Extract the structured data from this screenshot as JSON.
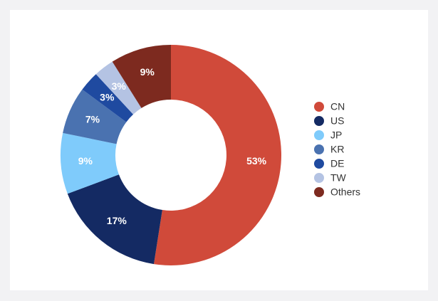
{
  "chart_data": {
    "type": "donut",
    "categories": [
      "CN",
      "US",
      "JP",
      "KR",
      "DE",
      "TW",
      "Others"
    ],
    "values": [
      53,
      17,
      9,
      7,
      3,
      3,
      9
    ],
    "value_labels": [
      "53%",
      "17%",
      "9%",
      "7%",
      "3%",
      "3%",
      "9%"
    ],
    "colors": [
      "#d04a3a",
      "#142a63",
      "#7fcbfb",
      "#4a72b0",
      "#1f4aa0",
      "#b4c3e3",
      "#7d2a1f"
    ],
    "legend": "right"
  }
}
